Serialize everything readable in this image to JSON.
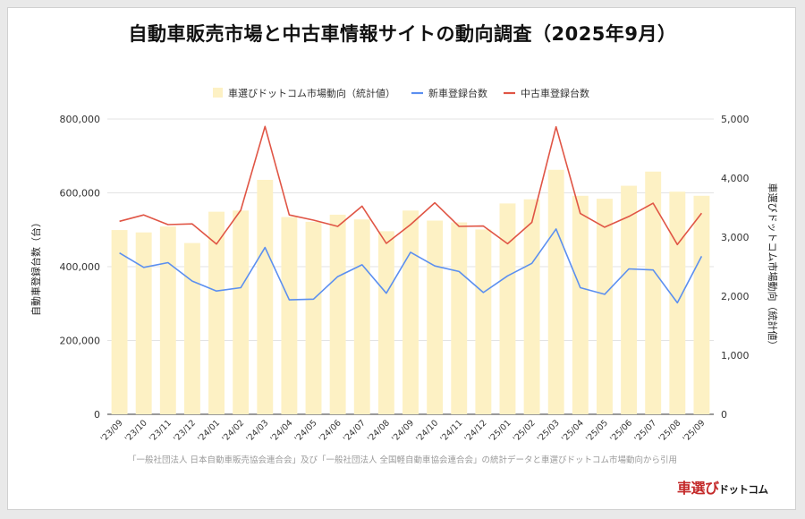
{
  "title": "自動車販売市場と中古車情報サイトの動向調査（2025年9月）",
  "source": "「一般社団法人 日本自動車販売協会連合会」及び「一般社団法人 全国軽自動車協会連合会」の統計データと車選びドットコム市場動向から引用",
  "logo": {
    "main": "車選び",
    "sub": "ドットコム"
  },
  "colors": {
    "bars": "#fdf1c4",
    "new_car": "#5b8ff0",
    "used_car": "#e05545"
  },
  "chart_data": {
    "type": "bar+line",
    "title": "自動車販売市場と中古車情報サイトの動向調査（2025年9月）",
    "categories": [
      "'23/09",
      "'23/10",
      "'23/11",
      "'23/12",
      "'24/01",
      "'24/02",
      "'24/03",
      "'24/04",
      "'24/05",
      "'24/06",
      "'24/07",
      "'24/08",
      "'24/09",
      "'24/10",
      "'24/11",
      "'24/12",
      "'25/01",
      "'25/02",
      "'25/03",
      "'25/04",
      "'25/05",
      "'25/06",
      "'25/07",
      "'25/08",
      "'25/09"
    ],
    "ylabel": "自動車登録台数（台）",
    "ylabel_right": "車選びドットコム市場動向（統計値）",
    "ylim": [
      0,
      800000
    ],
    "ylim_right": [
      0,
      5000
    ],
    "yticks": [
      "0",
      "200,000",
      "400,000",
      "600,000",
      "800,000"
    ],
    "yticks_right": [
      "0",
      "1,000",
      "2,000",
      "3,000",
      "4,000",
      "5,000"
    ],
    "legend_position": "top-center",
    "series": [
      {
        "name": "車選びドットコム市場動向（統計値）",
        "kind": "bar",
        "axis": "right",
        "values": [
          3120,
          3080,
          3180,
          2900,
          3430,
          3450,
          3970,
          3340,
          3260,
          3380,
          3300,
          3100,
          3450,
          3280,
          3250,
          3130,
          3570,
          3640,
          4140,
          3700,
          3650,
          3870,
          4110,
          3770,
          3700
        ]
      },
      {
        "name": "新車登録台数",
        "kind": "line",
        "axis": "left",
        "values": [
          437000,
          398000,
          411000,
          361000,
          334000,
          343000,
          452000,
          310000,
          312000,
          373000,
          405000,
          328000,
          439000,
          402000,
          387000,
          330000,
          375000,
          409000,
          502000,
          343000,
          325000,
          394000,
          391000,
          302000,
          428000
        ]
      },
      {
        "name": "中古車登録台数",
        "kind": "line",
        "axis": "left",
        "values": [
          523000,
          540000,
          514000,
          516000,
          461000,
          553000,
          780000,
          540000,
          526000,
          509000,
          564000,
          463000,
          514000,
          573000,
          509000,
          510000,
          462000,
          520000,
          779000,
          544000,
          507000,
          536000,
          572000,
          460000,
          545000
        ]
      }
    ]
  }
}
